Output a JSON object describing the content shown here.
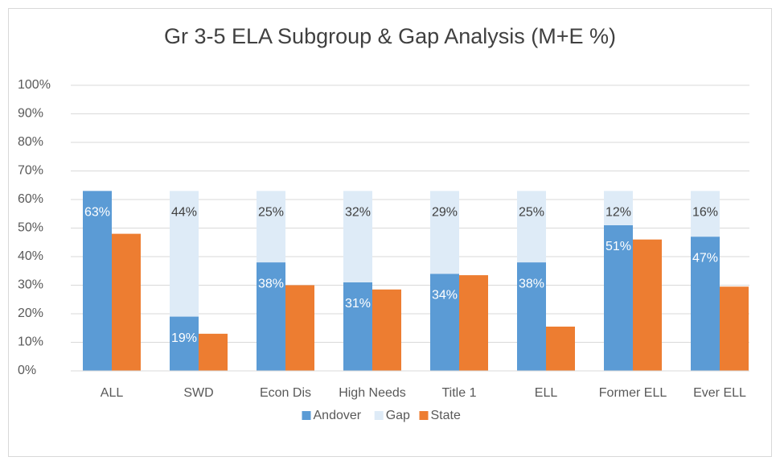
{
  "chart_data": {
    "type": "bar",
    "title": "Gr 3-5 ELA Subgroup & Gap Analysis (M+E %)",
    "categories": [
      "ALL",
      "SWD",
      "Econ Dis",
      "High Needs",
      "Title 1",
      "ELL",
      "Former ELL",
      "Ever ELL"
    ],
    "series": [
      {
        "name": "Andover",
        "color": "#5b9bd5",
        "stack": "a",
        "values": [
          63,
          19,
          38,
          31,
          34,
          38,
          51,
          47
        ],
        "value_labels": [
          "63%",
          "19%",
          "38%",
          "31%",
          "34%",
          "38%",
          "51%",
          "47%"
        ]
      },
      {
        "name": "Gap",
        "color": "#deebf7",
        "stack": "a",
        "values": [
          null,
          44,
          25,
          32,
          29,
          25,
          12,
          16
        ],
        "value_labels": [
          null,
          "44%",
          "25%",
          "32%",
          "29%",
          "25%",
          "12%",
          "16%"
        ]
      },
      {
        "name": "State",
        "color": "#ed7d31",
        "stack": "b",
        "values": [
          48,
          13,
          30,
          28.5,
          33.5,
          15.5,
          46,
          29.5
        ]
      }
    ],
    "ylim": [
      0,
      100
    ],
    "yticks": [
      {
        "value": 0,
        "label": "0%"
      },
      {
        "value": 10,
        "label": "10%"
      },
      {
        "value": 20,
        "label": "20%"
      },
      {
        "value": 30,
        "label": "30%"
      },
      {
        "value": 40,
        "label": "40%"
      },
      {
        "value": 50,
        "label": "50%"
      },
      {
        "value": 60,
        "label": "60%"
      },
      {
        "value": 70,
        "label": "70%"
      },
      {
        "value": 80,
        "label": "80%"
      },
      {
        "value": 90,
        "label": "90%"
      },
      {
        "value": 100,
        "label": "100%"
      }
    ],
    "grid": true,
    "legend": "bottom"
  }
}
